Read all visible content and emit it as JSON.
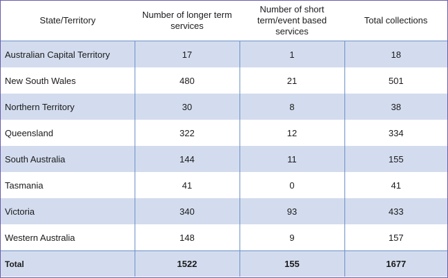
{
  "table": {
    "headers": [
      "State/Territory",
      "Number of longer term services",
      "Number of short term/event based services",
      "Total collections"
    ],
    "rows": [
      [
        "Australian Capital Territory",
        "17",
        "1",
        "18"
      ],
      [
        "New South Wales",
        "480",
        "21",
        "501"
      ],
      [
        "Northern Territory",
        "30",
        "8",
        "38"
      ],
      [
        "Queensland",
        "322",
        "12",
        "334"
      ],
      [
        "South Australia",
        "144",
        "11",
        "155"
      ],
      [
        "Tasmania",
        "41",
        "0",
        "41"
      ],
      [
        "Victoria",
        "340",
        "93",
        "433"
      ],
      [
        "Western Australia",
        "148",
        "9",
        "157"
      ]
    ],
    "total": [
      "Total",
      "1522",
      "155",
      "1677"
    ]
  },
  "colors": {
    "row_shade": "#d3dcee",
    "grid_line": "#6a8fc8",
    "frame": "#6a5aa8"
  }
}
